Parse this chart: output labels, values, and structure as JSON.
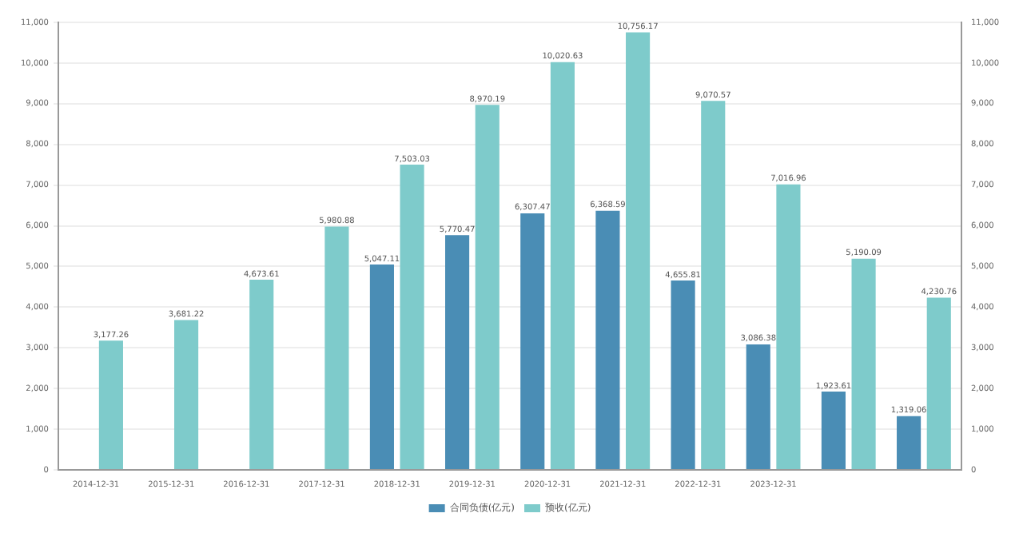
{
  "chart_data": {
    "type": "bar",
    "categories": [
      "2014-12-31",
      "2015-12-31",
      "2016-12-31",
      "2017-12-31",
      "2018-12-31",
      "2019-12-31",
      "2020-12-31",
      "2021-12-31",
      "2022-12-31",
      "2023-12-31",
      null,
      null
    ],
    "series": [
      {
        "name": "合同负债(亿元)",
        "color": "#4a8db5",
        "values": [
          null,
          null,
          null,
          null,
          5047.11,
          5770.47,
          6307.47,
          6368.59,
          4655.81,
          3086.38,
          1923.61,
          1319.06
        ],
        "value_labels": [
          null,
          null,
          null,
          null,
          "5,047.11",
          "5,770.47",
          "6,307.47",
          "6,368.59",
          "4,655.81",
          "3,086.38",
          "1,923.61",
          "1,319.06"
        ]
      },
      {
        "name": "预收(亿元)",
        "color": "#7ecbcb",
        "values": [
          3177.26,
          3681.22,
          4673.61,
          5980.88,
          7503.03,
          8970.19,
          10020.63,
          10756.17,
          9070.57,
          7016.96,
          5190.09,
          4230.76
        ],
        "value_labels": [
          "3,177.26",
          "3,681.22",
          "4,673.61",
          "5,980.88",
          "7,503.03",
          "8,970.19",
          "10,020.63",
          "10,756.17",
          "9,070.57",
          "7,016.96",
          "5,190.09",
          "4,230.76"
        ]
      }
    ],
    "ylim": [
      0,
      11000
    ],
    "yticks": [
      0,
      {
        "value": 1000,
        "label": "1,000"
      },
      {
        "value": 2000,
        "label": "2,000"
      },
      {
        "value": 3000,
        "label": "3,000"
      },
      {
        "value": 4000,
        "label": "4,000"
      },
      {
        "value": 5000,
        "label": "5,000"
      },
      {
        "value": 6000,
        "label": "6,000"
      },
      {
        "value": 7000,
        "label": "7,000"
      },
      {
        "value": 8000,
        "label": "8,000"
      },
      {
        "value": 9000,
        "label": "9,000"
      },
      {
        "value": 10000,
        "label": "10,000"
      },
      {
        "value": 11000,
        "label": "11,000"
      }
    ],
    "y2lim": [
      0,
      11000
    ],
    "y2ticks": [
      0,
      {
        "value": 1000,
        "label": "1,000"
      },
      {
        "value": 2000,
        "label": "2,000"
      },
      {
        "value": 3000,
        "label": "3,000"
      },
      {
        "value": 4000,
        "label": "4,000"
      },
      {
        "value": 5000,
        "label": "5,000"
      },
      {
        "value": 6000,
        "label": "6,000"
      },
      {
        "value": 7000,
        "label": "7,000"
      },
      {
        "value": 8000,
        "label": "8,000"
      },
      {
        "value": 9000,
        "label": "9,000"
      },
      {
        "value": 10000,
        "label": "10,000"
      },
      {
        "value": 11000,
        "label": "11,000"
      }
    ],
    "grid": "y",
    "legend": "bottom"
  }
}
